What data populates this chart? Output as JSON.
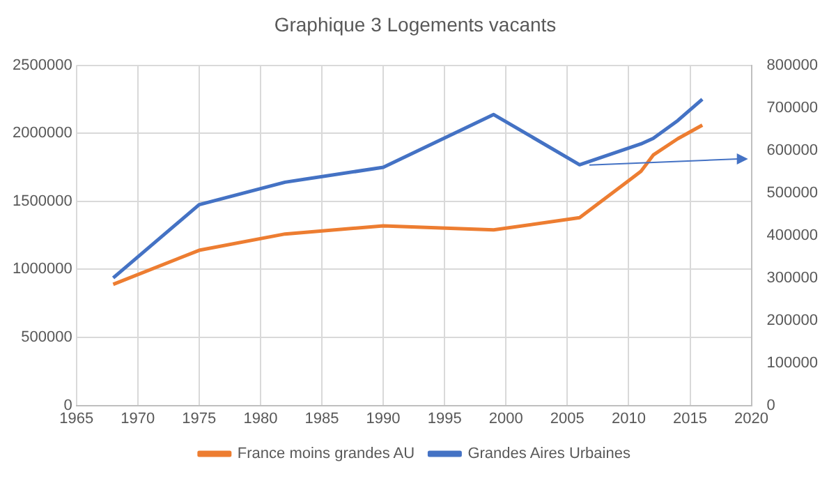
{
  "chart_data": {
    "type": "line",
    "title": "Graphique 3 Logements vacants",
    "series": [
      {
        "name": "France moins grandes AU",
        "color": "#ed7d31",
        "x": [
          1968,
          1975,
          1982,
          1990,
          1999,
          2006,
          2011,
          2012,
          2014,
          2016
        ],
        "values": [
          890000,
          1140000,
          1260000,
          1320000,
          1290000,
          1380000,
          1720000,
          1840000,
          1960000,
          2060000
        ]
      },
      {
        "name": "Grandes Aires Urbaines",
        "color": "#4472c4",
        "axis": "y2",
        "x": [
          1968,
          1975,
          1982,
          1990,
          1999,
          2006,
          2011,
          2012,
          2014,
          2016
        ],
        "values": [
          300000,
          472000,
          525000,
          560000,
          684000,
          566000,
          615000,
          628000,
          670000,
          720000
        ]
      }
    ],
    "xlim": [
      1965,
      2020
    ],
    "xticks": [
      1965,
      1970,
      1975,
      1980,
      1985,
      1990,
      1995,
      2000,
      2005,
      2010,
      2015,
      2020
    ],
    "ylim": [
      0,
      2500000
    ],
    "yticks": [
      0,
      500000,
      1000000,
      1500000,
      2000000,
      2500000
    ],
    "y2lim": [
      0,
      800000
    ],
    "y2ticks": [
      0,
      100000,
      200000,
      300000,
      400000,
      500000,
      600000,
      700000,
      800000
    ],
    "grid": true,
    "legend": "bottom",
    "marker": "none",
    "line_style": "solid"
  }
}
